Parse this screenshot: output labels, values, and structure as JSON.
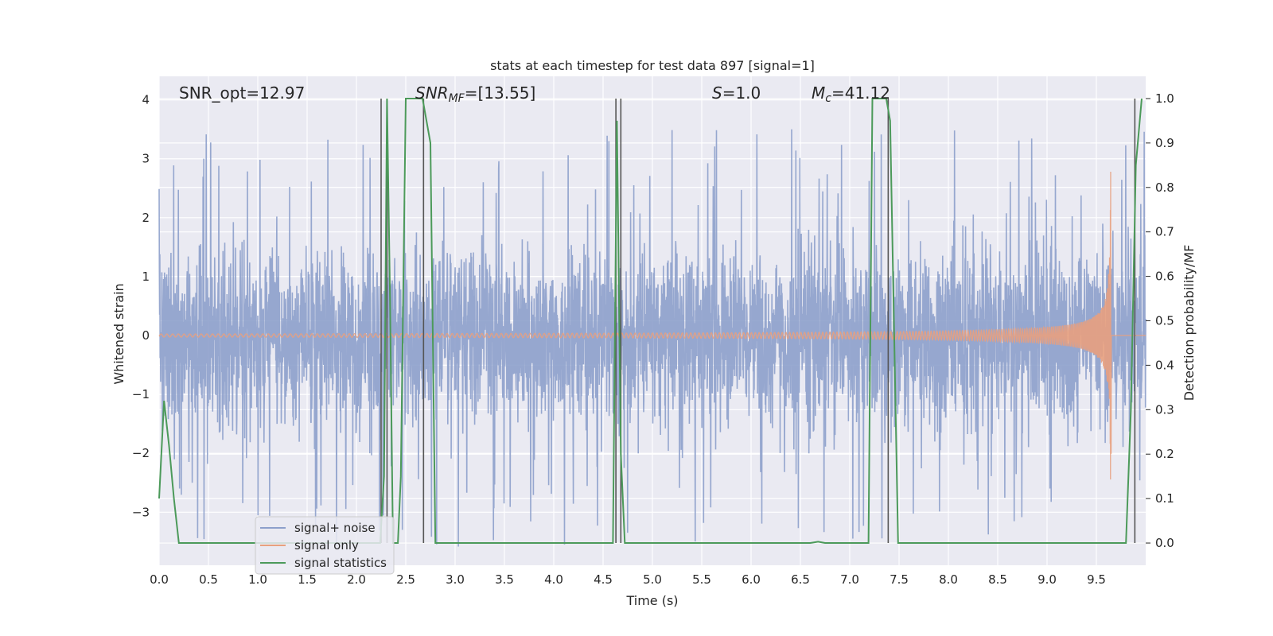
{
  "chart_data": {
    "type": "line",
    "title": "stats at each timestep for test data 897 [signal=1]",
    "xlabel": "Time (s)",
    "ylabel": "Whitened strain",
    "ylabel_right": "Detection probability/MF",
    "xlim": [
      0.0,
      10.0
    ],
    "ylim": [
      -3.9,
      4.4
    ],
    "ylim_right": [
      -0.05,
      1.05
    ],
    "x_ticks": [
      "0.0",
      "0.5",
      "1.0",
      "1.5",
      "2.0",
      "2.5",
      "3.0",
      "3.5",
      "4.0",
      "4.5",
      "5.0",
      "5.5",
      "6.0",
      "6.5",
      "7.0",
      "7.5",
      "8.0",
      "8.5",
      "9.0",
      "9.5"
    ],
    "y_ticks": [
      "−3",
      "−2",
      "−1",
      "0",
      "1",
      "2",
      "3",
      "4"
    ],
    "y_ticks_right": [
      "0.0",
      "0.1",
      "0.2",
      "0.3",
      "0.4",
      "0.5",
      "0.6",
      "0.7",
      "0.8",
      "0.9",
      "1.0"
    ],
    "grid": true,
    "legend_position": "lower-left",
    "annotations": {
      "snr_opt": "SNR_opt=12.97",
      "snr_mf_sym": "SNR",
      "snr_mf_sub": "MF",
      "snr_mf_val": "=[13.55]",
      "s_sym": "S",
      "s_val": "=1.0",
      "mc_sym": "M",
      "mc_sub": "c",
      "mc_val": "=41.12"
    },
    "series": [
      {
        "name": "signal+ noise",
        "color": "#8da0cb",
        "note": "noise band roughly ±1.3 with spikes up to ~3.7"
      },
      {
        "name": "signal only",
        "color": "#e8a07e",
        "chirp_end_time": 9.65,
        "peak_amplitude": 3.0
      },
      {
        "name": "signal statistics",
        "color": "#4c9a5a",
        "x": [
          0.0,
          0.05,
          0.1,
          0.15,
          0.2,
          0.25,
          2.24,
          2.28,
          2.31,
          2.34,
          2.37,
          2.42,
          2.45,
          2.5,
          2.63,
          2.67,
          2.75,
          2.8,
          4.6,
          4.64,
          4.68,
          4.72,
          6.6,
          6.68,
          6.75,
          7.19,
          7.23,
          7.37,
          7.41,
          7.49,
          9.8,
          9.85,
          9.9,
          9.96
        ],
        "y": [
          0.1,
          0.32,
          0.22,
          0.1,
          0.0,
          0.0,
          0.0,
          0.15,
          1.0,
          0.55,
          0.0,
          0.0,
          0.15,
          1.0,
          1.0,
          1.0,
          0.9,
          0.0,
          0.0,
          0.95,
          0.2,
          0.0,
          0.0,
          0.003,
          0.0,
          0.0,
          1.0,
          1.0,
          0.95,
          0.0,
          0.0,
          0.3,
          0.85,
          1.0
        ]
      },
      {
        "name": "MF",
        "color": "#555555",
        "vlines_x": [
          2.25,
          2.31,
          2.68,
          4.63,
          4.68,
          7.39,
          9.89
        ]
      }
    ]
  },
  "colors": {
    "plot_background": "#eaeaf2",
    "grid": "#ffffff",
    "noise": "#8da0cb",
    "signal": "#e8a07e",
    "statistics": "#4c9a5a",
    "mf_lines": "#555555"
  }
}
